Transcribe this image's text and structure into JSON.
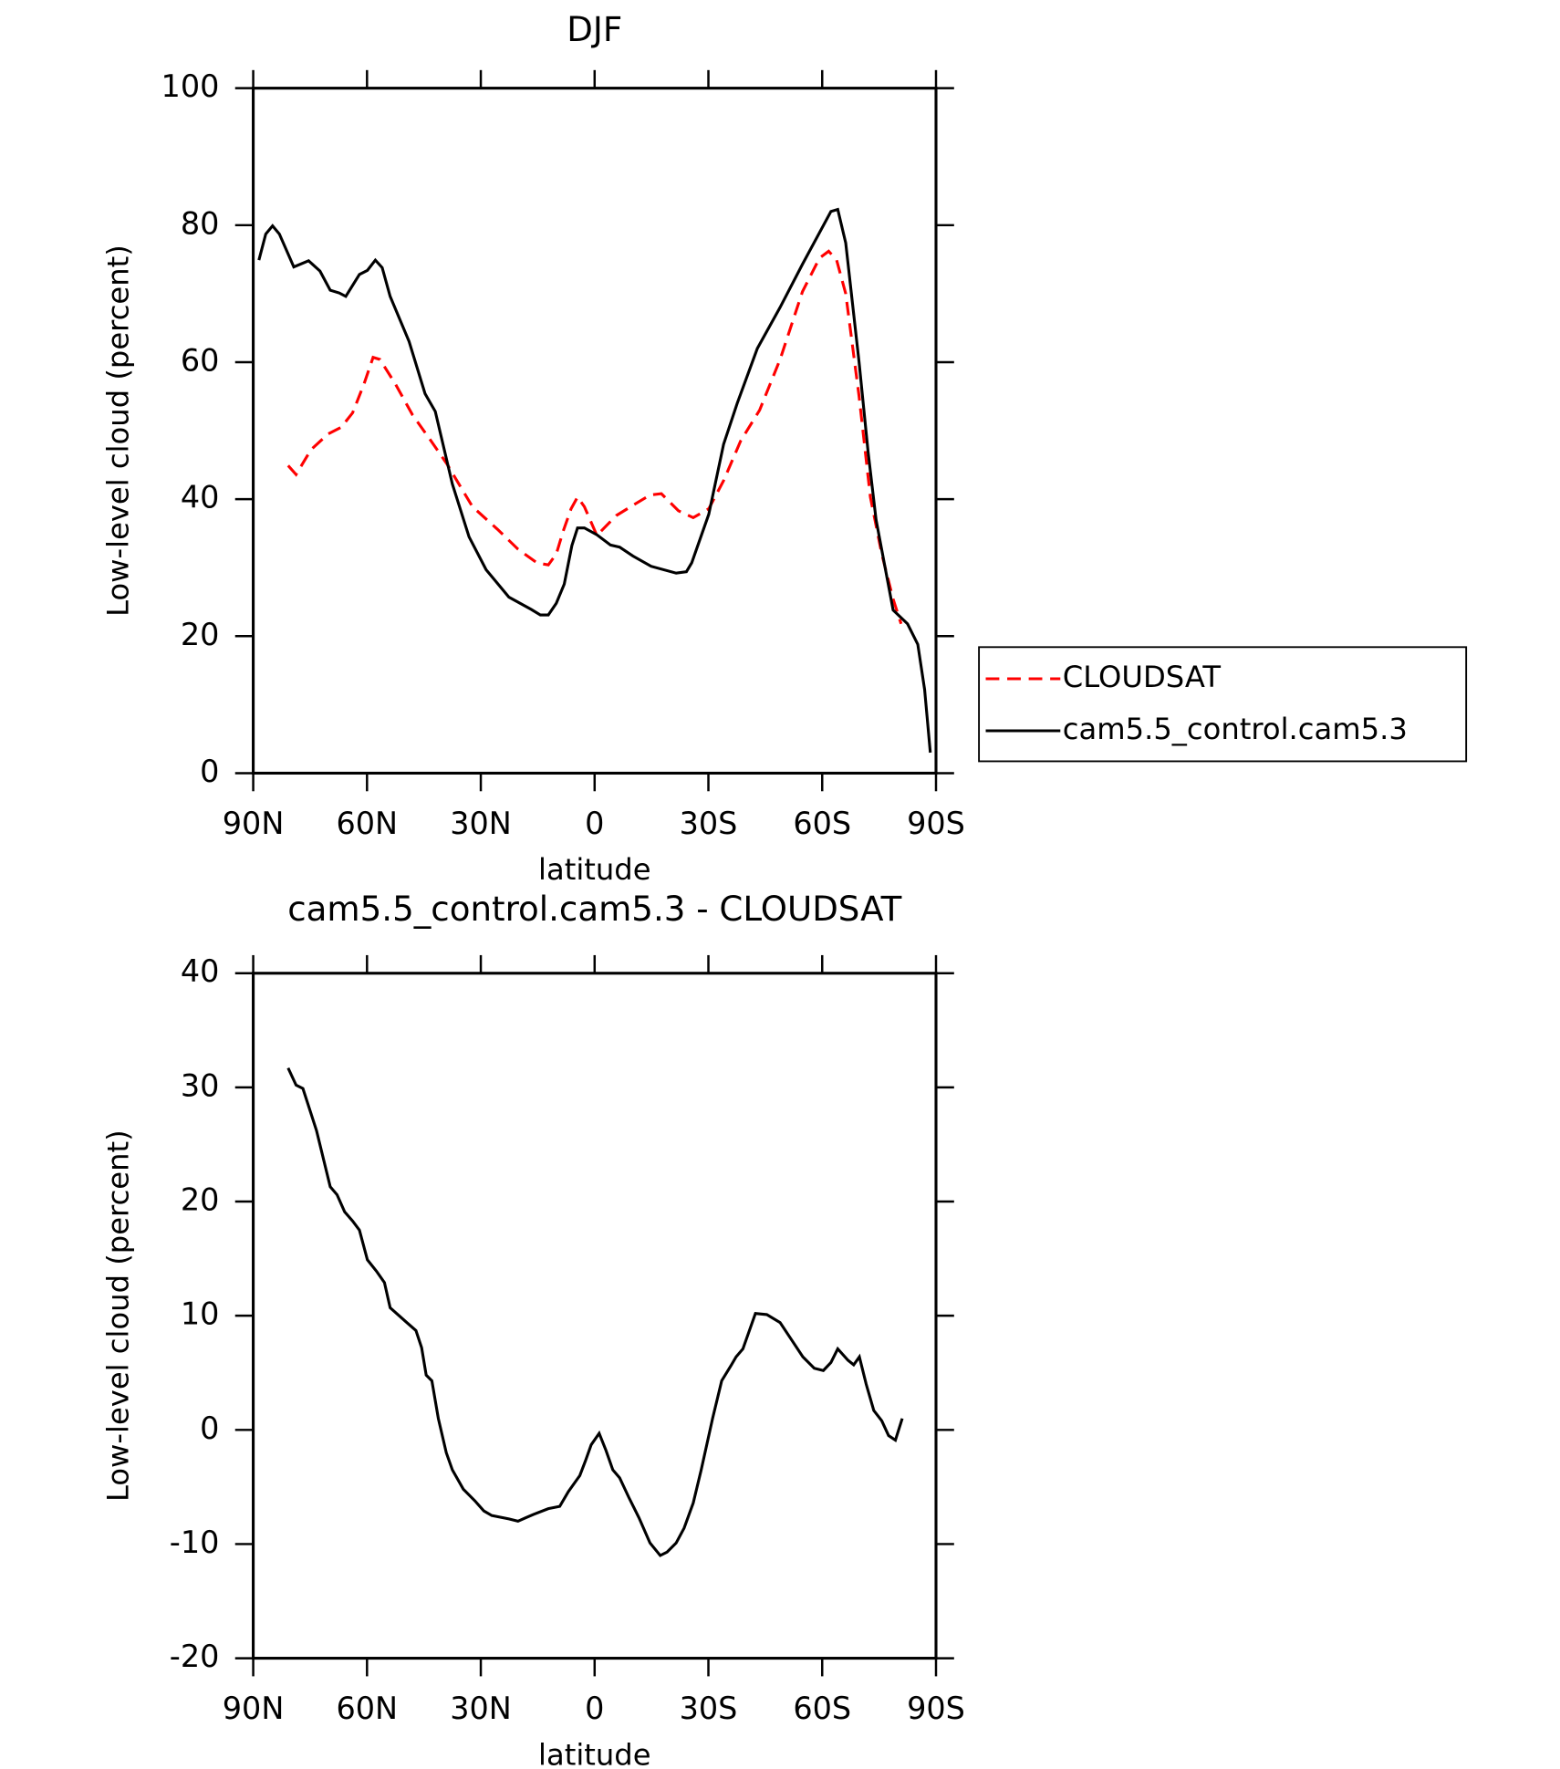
{
  "chart_data": [
    {
      "type": "line",
      "title": "DJF",
      "xlabel": "latitude",
      "ylabel": "Low-level cloud (percent)",
      "xlim": [
        90,
        -90
      ],
      "xticks": [
        {
          "value": 90,
          "label": "90N"
        },
        {
          "value": 60,
          "label": "60N"
        },
        {
          "value": 30,
          "label": "30N"
        },
        0,
        {
          "value": -30,
          "label": "30S"
        },
        {
          "value": -60,
          "label": "60S"
        },
        {
          "value": -90,
          "label": "90S"
        }
      ],
      "ylim": [
        0,
        100
      ],
      "yticks": [
        0,
        20,
        40,
        60,
        80,
        100
      ],
      "legend": "outside-right",
      "series": [
        {
          "name": "CLOUDSAT",
          "color": "#ff0000",
          "line_style": "dashed",
          "x": [
            80.8,
            78.7,
            74.8,
            70.3,
            66.8,
            63.8,
            60.8,
            58.4,
            56.6,
            52.5,
            48,
            43.5,
            39,
            32.2,
            25.6,
            20.2,
            15.2,
            12.2,
            10.1,
            8.3,
            6.2,
            4.5,
            2.7,
            -0.6,
            -5.7,
            -10.1,
            -14.6,
            -17.6,
            -22.1,
            -26,
            -30.1,
            -34,
            -38.5,
            -43.5,
            -48.9,
            -54.8,
            -59.3,
            -61.7,
            -63.8,
            -66.2,
            -69.7,
            -72.7,
            -75.7,
            -78.7,
            -80.8
          ],
          "values": [
            44.9,
            43.6,
            47.2,
            49.5,
            50.5,
            52.6,
            56.8,
            60.7,
            60.4,
            56.8,
            52.3,
            48.8,
            45.2,
            38.9,
            35.6,
            32.7,
            30.7,
            30.4,
            32.0,
            35.3,
            38.6,
            40.3,
            38.9,
            34.7,
            37.6,
            39.1,
            40.6,
            40.8,
            38.3,
            37.3,
            38.6,
            42.7,
            48.5,
            53.0,
            60.4,
            70.3,
            75.2,
            76.2,
            74.9,
            70.0,
            55.1,
            40.3,
            32.0,
            25.4,
            21.8
          ]
        },
        {
          "name": "cam5.5_control.cam5.3",
          "color": "#000000",
          "line_style": "solid",
          "x": [
            88.5,
            86.7,
            84.9,
            83.1,
            79.3,
            75.4,
            72.4,
            69.7,
            67.3,
            65.6,
            62,
            59.9,
            57.8,
            56,
            53.9,
            48.9,
            44.7,
            42,
            37.5,
            33.1,
            28.6,
            22.6,
            16.7,
            14.3,
            12.2,
            10.1,
            8,
            6,
            4.5,
            2.7,
            -0.6,
            -4.2,
            -6.6,
            -10.1,
            -14.9,
            -21.5,
            -24.2,
            -25.6,
            -30.1,
            -34,
            -37.6,
            -42.9,
            -48.9,
            -54.8,
            -62.3,
            -64.1,
            -66.2,
            -69.7,
            -72.1,
            -74.2,
            -78.7,
            -82.5,
            -85.2,
            -87,
            -88.5
          ],
          "values": [
            74.9,
            78.7,
            79.9,
            78.7,
            73.9,
            74.8,
            73.3,
            70.5,
            70.1,
            69.6,
            72.8,
            73.4,
            74.9,
            73.8,
            69.6,
            63.0,
            55.4,
            52.8,
            42.2,
            34.5,
            29.7,
            25.7,
            23.9,
            23.1,
            23.1,
            24.8,
            27.6,
            33.2,
            35.8,
            35.8,
            34.8,
            33.3,
            33.0,
            31.7,
            30.2,
            29.2,
            29.4,
            30.7,
            37.8,
            48.0,
            54.0,
            62.0,
            68.0,
            74.3,
            82.0,
            82.3,
            77.4,
            60.1,
            46.9,
            37.0,
            23.8,
            21.8,
            18.8,
            12.2,
            3.0
          ]
        }
      ]
    },
    {
      "type": "line",
      "title": "cam5.5_control.cam5.3 - CLOUDSAT",
      "xlabel": "latitude",
      "ylabel": "Low-level cloud (percent)",
      "xlim": [
        90,
        -90
      ],
      "xticks": [
        {
          "value": 90,
          "label": "90N"
        },
        {
          "value": 60,
          "label": "60N"
        },
        {
          "value": 30,
          "label": "30N"
        },
        0,
        {
          "value": -30,
          "label": "30S"
        },
        {
          "value": -60,
          "label": "60S"
        },
        {
          "value": -90,
          "label": "90S"
        }
      ],
      "ylim": [
        -20,
        40
      ],
      "yticks": [
        -20,
        -10,
        0,
        10,
        20,
        30,
        40
      ],
      "series": [
        {
          "color": "#000000",
          "line_style": "solid",
          "x": [
            80.8,
            78.7,
            76.9,
            73.3,
            69.7,
            67.9,
            65.9,
            63.8,
            62,
            59.9,
            57.5,
            55.4,
            53.9,
            49.5,
            47.1,
            45.6,
            44.4,
            42.9,
            41.2,
            39.1,
            37.5,
            34.6,
            31.6,
            29.2,
            27.1,
            22.6,
            20.2,
            18.2,
            16.1,
            12.2,
            9.2,
            6.9,
            3.9,
            2.4,
            0.9,
            -1.2,
            -3,
            -4.8,
            -6.6,
            -9,
            -11.7,
            -14.6,
            -17.3,
            -19.1,
            -21.5,
            -23.6,
            -26,
            -28.1,
            -31.1,
            -33.5,
            -35.9,
            -37.3,
            -39.1,
            -42.4,
            -45.4,
            -48.9,
            -51.9,
            -54.9,
            -57.9,
            -60.3,
            -62.3,
            -64.1,
            -66.8,
            -68.3,
            -69.8,
            -71.6,
            -73.6,
            -75.7,
            -77.5,
            -79.3,
            -81.1
          ],
          "values": [
            31.7,
            30.2,
            29.9,
            26.2,
            21.3,
            20.6,
            19.1,
            18.3,
            17.5,
            14.9,
            13.9,
            12.9,
            10.7,
            9.4,
            8.7,
            7.2,
            4.8,
            4.3,
            1.0,
            -2.0,
            -3.5,
            -5.2,
            -6.2,
            -7.1,
            -7.5,
            -7.8,
            -8.0,
            -7.7,
            -7.4,
            -6.9,
            -6.7,
            -5.4,
            -4.0,
            -2.7,
            -1.3,
            -0.3,
            -1.8,
            -3.5,
            -4.2,
            -5.9,
            -7.7,
            -9.9,
            -11.0,
            -10.7,
            -9.9,
            -8.6,
            -6.4,
            -3.5,
            1.0,
            4.3,
            5.6,
            6.4,
            7.1,
            10.2,
            10.1,
            9.4,
            7.9,
            6.4,
            5.4,
            5.2,
            5.9,
            7.1,
            6.1,
            5.7,
            6.4,
            4.0,
            1.7,
            0.8,
            -0.5,
            -0.9,
            1.0
          ]
        }
      ]
    }
  ]
}
